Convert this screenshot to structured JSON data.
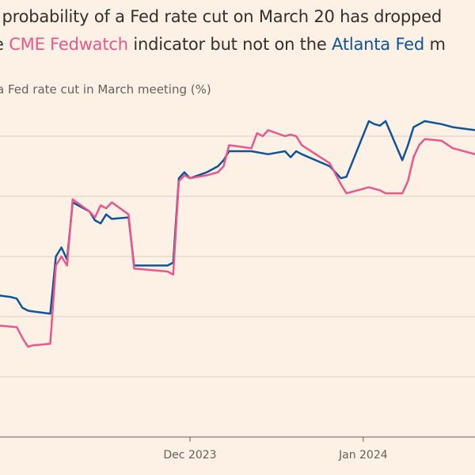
{
  "header": {
    "title_line1": "t probability of a Fed rate cut on March 20 has dropped",
    "title_line2_prefix": "e ",
    "title_line2_cme": "CME Fedwatch",
    "title_line2_mid": " indicator but not on the ",
    "title_line2_atl": "Atlanta Fed",
    "title_line2_suffix": " m",
    "subtitle": "a Fed rate cut in March meeting (%)"
  },
  "colors": {
    "background": "#fdf1e5",
    "cme": "#e9578c",
    "atlanta": "#0f5499",
    "grid": "#d9cdc0",
    "axis": "#66605c"
  },
  "chart_data": {
    "type": "line",
    "title": "",
    "xlabel": "",
    "ylabel": "",
    "x_range": [
      "2023-10-28",
      "2024-01-21"
    ],
    "y_range": [
      0,
      100
    ],
    "grid": true,
    "x_ticks": [
      {
        "date": "2023-12-01",
        "label": "Dec 2023"
      },
      {
        "date": "2024-01-01",
        "label": "Jan 2024"
      }
    ],
    "series": [
      {
        "name": "Atlanta Fed",
        "color": "#0f5499",
        "points": [
          [
            "2023-10-28",
            47
          ],
          [
            "2023-10-30",
            46.5
          ],
          [
            "2023-10-31",
            46
          ],
          [
            "2023-11-01",
            43
          ],
          [
            "2023-11-02",
            42
          ],
          [
            "2023-11-03",
            41.7
          ],
          [
            "2023-11-06",
            41
          ],
          [
            "2023-11-07",
            60
          ],
          [
            "2023-11-08",
            63
          ],
          [
            "2023-11-09",
            59
          ],
          [
            "2023-11-10",
            78
          ],
          [
            "2023-11-13",
            75
          ],
          [
            "2023-11-14",
            72
          ],
          [
            "2023-11-15",
            71
          ],
          [
            "2023-11-16",
            74
          ],
          [
            "2023-11-17",
            72.5
          ],
          [
            "2023-11-20",
            73
          ],
          [
            "2023-11-21",
            57
          ],
          [
            "2023-11-27",
            57
          ],
          [
            "2023-11-28",
            58
          ],
          [
            "2023-11-29",
            86
          ],
          [
            "2023-11-30",
            88
          ],
          [
            "2023-12-01",
            86
          ],
          [
            "2023-12-04",
            88
          ],
          [
            "2023-12-06",
            90
          ],
          [
            "2023-12-07",
            92
          ],
          [
            "2023-12-08",
            95
          ],
          [
            "2023-12-12",
            95
          ],
          [
            "2023-12-15",
            94
          ],
          [
            "2023-12-18",
            95
          ],
          [
            "2023-12-19",
            93
          ],
          [
            "2023-12-20",
            95
          ],
          [
            "2023-12-21",
            94
          ],
          [
            "2023-12-26",
            90
          ],
          [
            "2023-12-28",
            86
          ],
          [
            "2023-12-29",
            86.5
          ],
          [
            "2024-01-02",
            105
          ],
          [
            "2024-01-03",
            104
          ],
          [
            "2024-01-04",
            103.5
          ],
          [
            "2024-01-05",
            105
          ],
          [
            "2024-01-08",
            92
          ],
          [
            "2024-01-09",
            97
          ],
          [
            "2024-01-10",
            103
          ],
          [
            "2024-01-11",
            104
          ],
          [
            "2024-01-12",
            105
          ],
          [
            "2024-01-15",
            104
          ],
          [
            "2024-01-17",
            103
          ],
          [
            "2024-01-21",
            102
          ]
        ]
      },
      {
        "name": "CME Fedwatch",
        "color": "#e9578c",
        "points": [
          [
            "2023-10-28",
            37
          ],
          [
            "2023-10-31",
            36.5
          ],
          [
            "2023-11-01",
            33
          ],
          [
            "2023-11-02",
            30
          ],
          [
            "2023-11-03",
            30.5
          ],
          [
            "2023-11-06",
            31
          ],
          [
            "2023-11-07",
            57
          ],
          [
            "2023-11-08",
            60
          ],
          [
            "2023-11-09",
            57
          ],
          [
            "2023-11-10",
            79
          ],
          [
            "2023-11-13",
            75
          ],
          [
            "2023-11-14",
            73
          ],
          [
            "2023-11-15",
            77
          ],
          [
            "2023-11-16",
            76
          ],
          [
            "2023-11-17",
            78
          ],
          [
            "2023-11-20",
            74
          ],
          [
            "2023-11-21",
            56
          ],
          [
            "2023-11-27",
            55
          ],
          [
            "2023-11-28",
            54
          ],
          [
            "2023-11-29",
            85
          ],
          [
            "2023-11-30",
            87
          ],
          [
            "2023-12-01",
            86
          ],
          [
            "2023-12-04",
            87
          ],
          [
            "2023-12-06",
            88
          ],
          [
            "2023-12-07",
            90
          ],
          [
            "2023-12-08",
            97
          ],
          [
            "2023-12-12",
            96
          ],
          [
            "2023-12-13",
            101
          ],
          [
            "2023-12-14",
            100
          ],
          [
            "2023-12-15",
            102
          ],
          [
            "2023-12-18",
            100
          ],
          [
            "2023-12-19",
            100.5
          ],
          [
            "2023-12-20",
            100
          ],
          [
            "2023-12-21",
            97
          ],
          [
            "2023-12-26",
            91
          ],
          [
            "2023-12-28",
            84
          ],
          [
            "2023-12-29",
            81
          ],
          [
            "2024-01-02",
            83
          ],
          [
            "2024-01-04",
            82
          ],
          [
            "2024-01-05",
            81
          ],
          [
            "2024-01-08",
            81
          ],
          [
            "2024-01-09",
            85
          ],
          [
            "2024-01-10",
            93
          ],
          [
            "2024-01-11",
            97
          ],
          [
            "2024-01-12",
            99
          ],
          [
            "2024-01-15",
            98.5
          ],
          [
            "2024-01-17",
            96
          ],
          [
            "2024-01-21",
            94
          ]
        ]
      }
    ]
  }
}
